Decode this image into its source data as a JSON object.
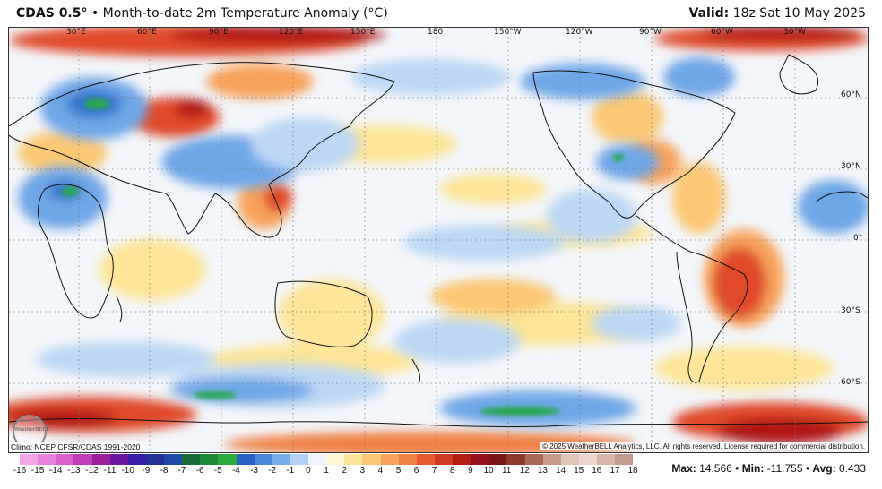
{
  "header": {
    "model": "CDAS 0.5",
    "degree": "°",
    "bullet": "•",
    "description": "Month-to-date 2m Temperature Anomaly (°C)",
    "valid_label": "Valid:",
    "valid_time": "18z Sat 10 May 2025"
  },
  "map": {
    "lon_labels": [
      "30°E",
      "60°E",
      "90°E",
      "120°E",
      "150°E",
      "180",
      "150°W",
      "120°W",
      "90°W",
      "60°W",
      "30°W"
    ],
    "lat_labels": [
      "60°N",
      "30°N",
      "0°",
      "30°S",
      "60°S"
    ],
    "colors": {
      "land_border": "#111111",
      "neutral": "#f3f6fb",
      "warm_light": "#fde59a",
      "warm_mid": "#f7a35c",
      "warm_strong": "#e04a2a",
      "warm_extreme": "#b01218",
      "cool_light": "#bcd8f5",
      "cool_mid": "#6ea6e6",
      "cool_strong": "#2e6fcc",
      "cool_green": "#25a84a"
    }
  },
  "footer": {
    "climo": "Climo: NCEP CFSR/CDAS 1991-2020",
    "copyright": "© 2025 WeatherBELL Analytics, LLC. All rights reserved. License required for commercial distribution.",
    "logo_text": "WeatherBELL"
  },
  "colorbar": {
    "labels": [
      "-16",
      "-15",
      "-14",
      "-13",
      "-12",
      "-11",
      "-10",
      "-9",
      "-8",
      "-7",
      "-6",
      "-5",
      "-4",
      "-3",
      "-2",
      "-1",
      "0",
      "1",
      "2",
      "3",
      "4",
      "5",
      "6",
      "7",
      "8",
      "9",
      "10",
      "11",
      "12",
      "13",
      "14",
      "15",
      "16",
      "17",
      "18"
    ],
    "colors": [
      "#f3a6e8",
      "#e883dc",
      "#d95fcc",
      "#c23cb8",
      "#9c1f9c",
      "#6a1aa0",
      "#3a1ea8",
      "#25309a",
      "#1f4aa8",
      "#1c6a3a",
      "#1e8c35",
      "#2aab3c",
      "#2a62c9",
      "#4b86dd",
      "#7aabe8",
      "#b2d1f4",
      "#eef4fb",
      "#fff8d6",
      "#fde59a",
      "#fbc874",
      "#f7a35c",
      "#f07f42",
      "#e35a30",
      "#cf3a22",
      "#b51d17",
      "#95101a",
      "#7a1716",
      "#8a3b2a",
      "#a86a55",
      "#c79b88",
      "#e0c4b8",
      "#ecd6ce",
      "#d8b4aa",
      "#c49a90"
    ]
  },
  "stats": {
    "max_label": "Max:",
    "max_value": "14.566",
    "min_label": "Min:",
    "min_value": "-11.755",
    "avg_label": "Avg:",
    "avg_value": "0.433",
    "sep": "•"
  }
}
